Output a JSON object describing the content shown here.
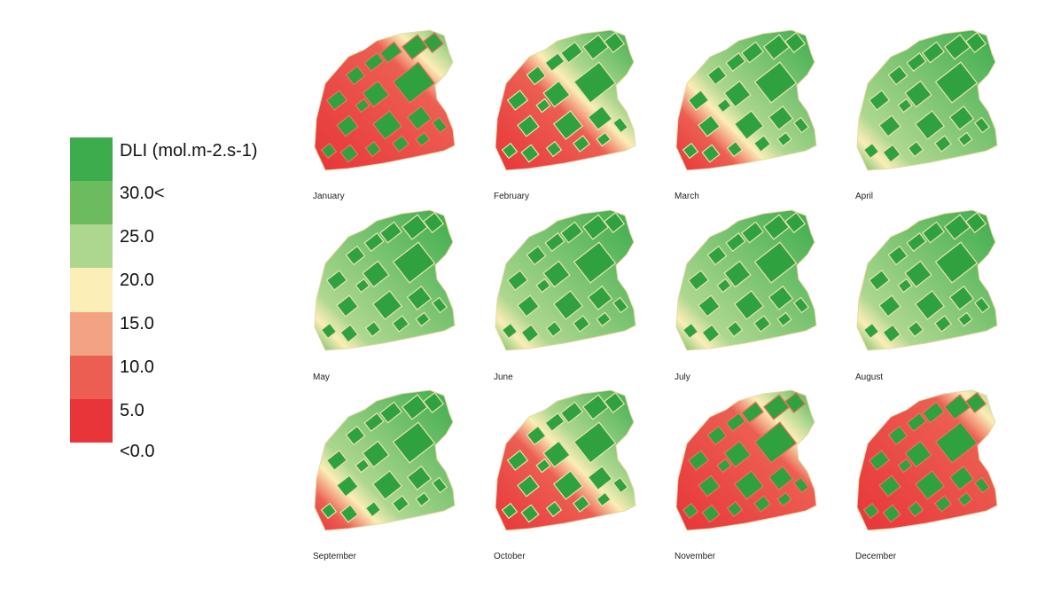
{
  "legend": {
    "title": "DLI (mol.m-2.s-1)",
    "labels": [
      "30.0<",
      "25.0",
      "20.0",
      "15.0",
      "10.0",
      "5.0",
      "<0.0"
    ],
    "colors": [
      "#3cac4c",
      "#6cbb5f",
      "#add78f",
      "#fbeeb6",
      "#f4a284",
      "#ec5e52",
      "#e83539"
    ]
  },
  "panels": [
    {
      "month": "January",
      "green_share": 0.18
    },
    {
      "month": "February",
      "green_share": 0.4
    },
    {
      "month": "March",
      "green_share": 0.62
    },
    {
      "month": "April",
      "green_share": 0.88
    },
    {
      "month": "May",
      "green_share": 0.95
    },
    {
      "month": "June",
      "green_share": 0.96
    },
    {
      "month": "July",
      "green_share": 0.96
    },
    {
      "month": "August",
      "green_share": 0.93
    },
    {
      "month": "September",
      "green_share": 0.72
    },
    {
      "month": "October",
      "green_share": 0.45
    },
    {
      "month": "November",
      "green_share": 0.22
    },
    {
      "month": "December",
      "green_share": 0.1
    }
  ]
}
